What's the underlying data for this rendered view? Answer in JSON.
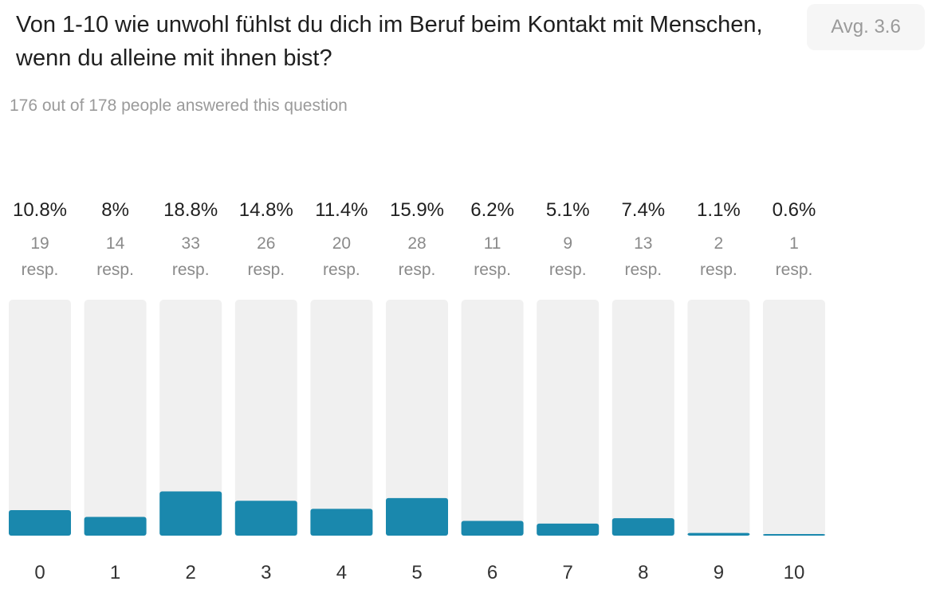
{
  "header": {
    "title": "Von 1-10 wie unwohl fühlst du dich im Beruf beim Kontakt mit Menschen, wenn du alleine mit ihnen bist?",
    "avg_label": "Avg. 3.6",
    "subtitle": "176 out of 178 people answered this question"
  },
  "colors": {
    "bar_fill": "#1a88ad",
    "track": "#f0f0f0"
  },
  "chart_data": {
    "type": "bar",
    "categories": [
      "0",
      "1",
      "2",
      "3",
      "4",
      "5",
      "6",
      "7",
      "8",
      "9",
      "10"
    ],
    "values": [
      19,
      14,
      33,
      26,
      20,
      28,
      11,
      9,
      13,
      2,
      1
    ],
    "percent_labels": [
      "10.8%",
      "8%",
      "18.8%",
      "14.8%",
      "11.4%",
      "15.9%",
      "6.2%",
      "5.1%",
      "7.4%",
      "1.1%",
      "0.6%"
    ],
    "count_labels": [
      "19",
      "14",
      "33",
      "26",
      "20",
      "28",
      "11",
      "9",
      "13",
      "2",
      "1"
    ],
    "resp_label": "resp.",
    "total": 176,
    "ylim": [
      0,
      176
    ],
    "grid": false,
    "legend": "none"
  }
}
